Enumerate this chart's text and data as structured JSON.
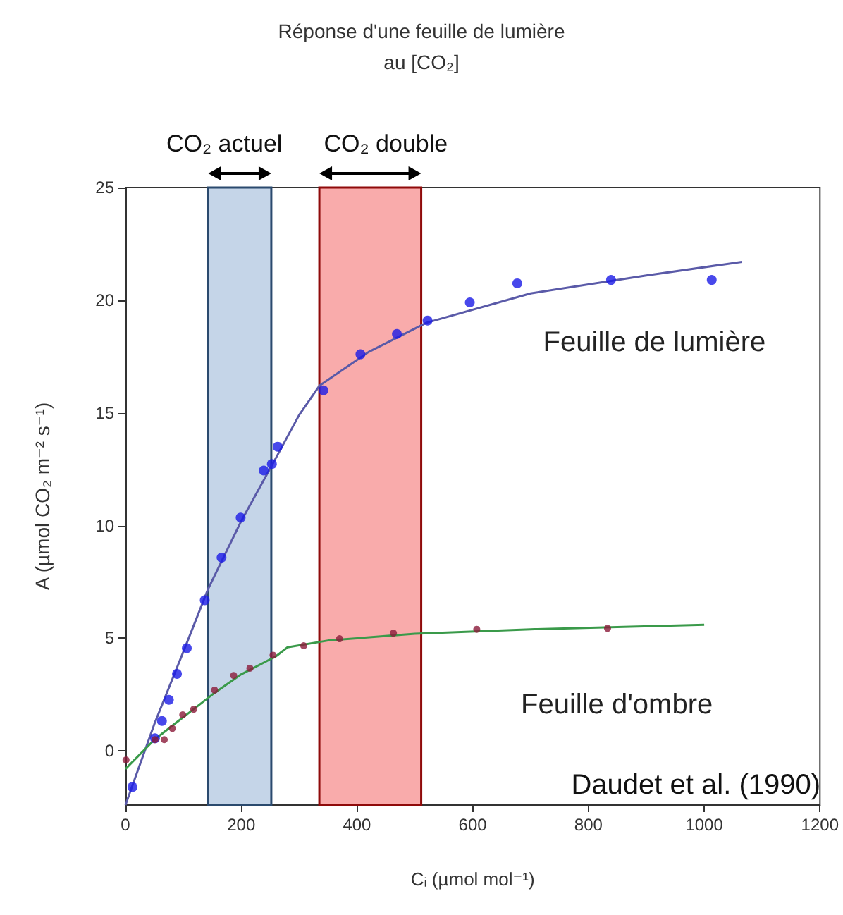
{
  "chart_data": {
    "type": "scatter",
    "title": "Réponse d'une feuille de lumière\nau [CO₂]",
    "xlabel": "Cᵢ (µmol mol⁻¹)",
    "ylabel": "A (µmol CO₂ m⁻² s⁻¹)",
    "annotations": [
      "Daudet et al. (1990)"
    ],
    "xlim": [
      0,
      1200
    ],
    "xticks": [
      0,
      200,
      400,
      600,
      800,
      1000,
      1200
    ],
    "ylim": [
      -2.4,
      25
    ],
    "yticks": [
      0,
      5,
      10,
      15,
      20,
      25
    ],
    "grid": false,
    "legend": false,
    "bands": [
      {
        "axis": "x",
        "from": 143,
        "to": 252,
        "label": "CO₂ actuel",
        "color": "#c5d5e8"
      },
      {
        "axis": "x",
        "from": 335,
        "to": 511,
        "label": "CO₂ double",
        "color": "#f9abab"
      }
    ],
    "series": [
      {
        "type": "scatter",
        "color": "#1a1ae6",
        "marker": "circle",
        "x": [
          12,
          51,
          63,
          75,
          89,
          106,
          137,
          166,
          199,
          239,
          253,
          263,
          342,
          406,
          469,
          522,
          595,
          677,
          839,
          1013
        ],
        "values": [
          -1.6,
          0.56,
          1.33,
          2.27,
          3.42,
          4.56,
          6.69,
          8.58,
          10.35,
          12.44,
          12.73,
          13.5,
          16.0,
          17.6,
          18.5,
          19.1,
          19.9,
          20.75,
          20.9,
          20.9
        ]
      },
      {
        "type": "line",
        "name": "Feuille de lumière",
        "color": "#5a5aa8",
        "marker": "none",
        "x": [
          0,
          50,
          100,
          143,
          200,
          260,
          300,
          335,
          420,
          520,
          700,
          900,
          1065
        ],
        "values": [
          -2.4,
          1.2,
          4.4,
          7.2,
          10.2,
          13,
          14.9,
          16.2,
          17.7,
          19,
          20.3,
          21.1,
          21.7
        ]
      },
      {
        "type": "scatter",
        "color": "#8b1a3a",
        "marker": "circle",
        "x": [
          1,
          51,
          67,
          81,
          99,
          118,
          154,
          187,
          215,
          255,
          308,
          370,
          463,
          607,
          833
        ],
        "values": [
          -0.4,
          0.5,
          0.5,
          1.0,
          1.6,
          1.85,
          2.7,
          3.35,
          3.67,
          4.25,
          4.67,
          4.98,
          5.23,
          5.4,
          5.44
        ]
      },
      {
        "type": "line",
        "name": "Feuille d'ombre",
        "color": "#3a9a4a",
        "marker": "none",
        "x": [
          0,
          50,
          100,
          150,
          200,
          260,
          280,
          350,
          500,
          700,
          1000
        ],
        "values": [
          -0.8,
          0.5,
          1.5,
          2.5,
          3.4,
          4.2,
          4.6,
          4.9,
          5.2,
          5.4,
          5.6
        ]
      }
    ]
  }
}
